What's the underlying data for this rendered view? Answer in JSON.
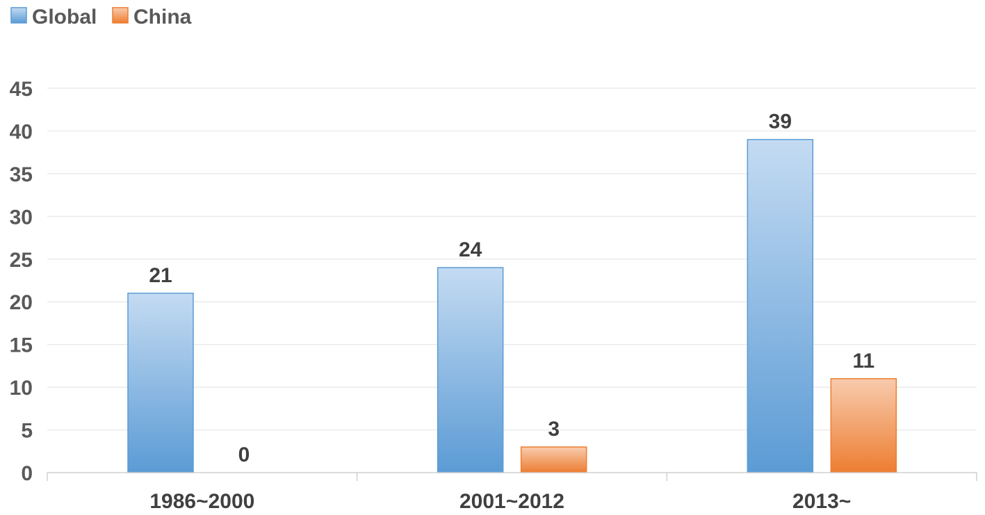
{
  "chart_data": {
    "type": "bar",
    "categories": [
      "1986~2000",
      "2001~2012",
      "2013~"
    ],
    "series": [
      {
        "name": "Global",
        "values": [
          21,
          24,
          39
        ],
        "color": "#5b9bd5"
      },
      {
        "name": "China",
        "values": [
          0,
          3,
          11
        ],
        "color": "#ed7d31"
      }
    ],
    "title": "",
    "xlabel": "",
    "ylabel": "",
    "ylim": [
      0,
      45
    ],
    "yticks": [
      0,
      5,
      10,
      15,
      20,
      25,
      30,
      35,
      40,
      45
    ],
    "grid": true,
    "legend_position": "top-left",
    "data_labels": true
  }
}
